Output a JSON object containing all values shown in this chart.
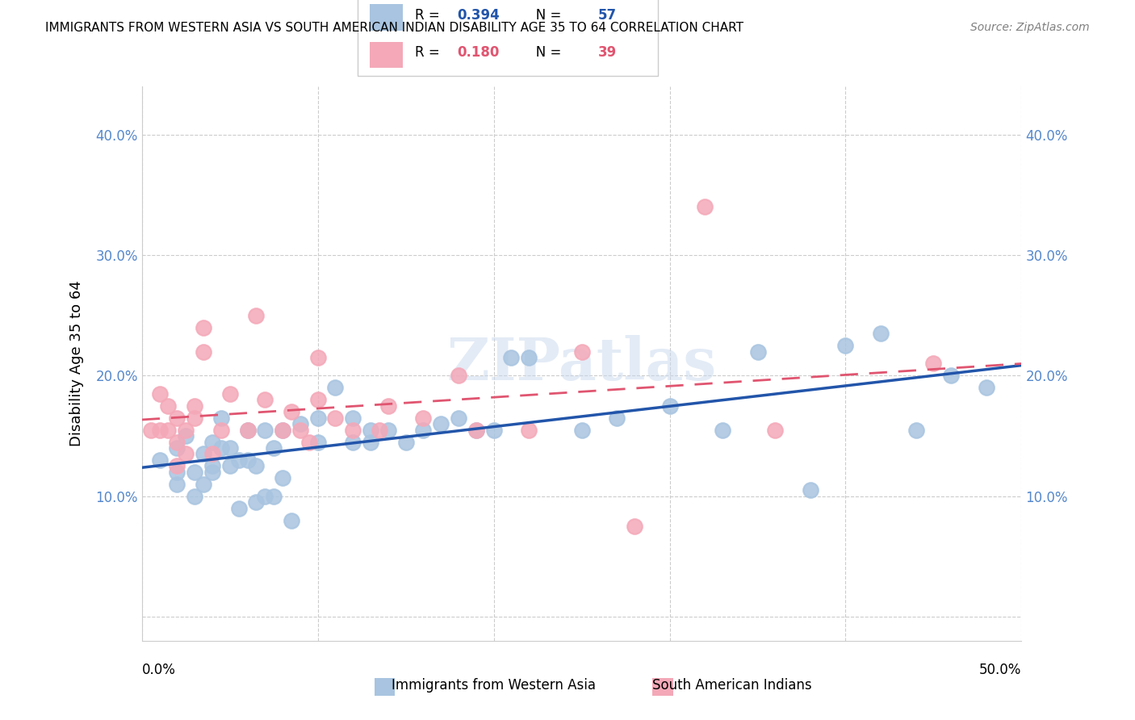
{
  "title": "IMMIGRANTS FROM WESTERN ASIA VS SOUTH AMERICAN INDIAN DISABILITY AGE 35 TO 64 CORRELATION CHART",
  "source": "Source: ZipAtlas.com",
  "ylabel": "Disability Age 35 to 64",
  "xlim": [
    0.0,
    0.5
  ],
  "ylim": [
    -0.02,
    0.44
  ],
  "yticks": [
    0.0,
    0.1,
    0.2,
    0.3,
    0.4
  ],
  "ytick_labels": [
    "",
    "10.0%",
    "20.0%",
    "30.0%",
    "40.0%"
  ],
  "blue_R": 0.394,
  "blue_N": 57,
  "pink_R": 0.18,
  "pink_N": 39,
  "blue_color": "#a8c4e0",
  "pink_color": "#f4a8b8",
  "blue_line_color": "#2255aa",
  "pink_line_color": "#e05570",
  "legend_label_blue": "Immigrants from Western Asia",
  "legend_label_pink": "South American Indians",
  "watermark": "ZIPatlas",
  "blue_scatter_x": [
    0.01,
    0.02,
    0.02,
    0.02,
    0.025,
    0.03,
    0.03,
    0.035,
    0.035,
    0.04,
    0.04,
    0.04,
    0.045,
    0.045,
    0.05,
    0.05,
    0.055,
    0.055,
    0.06,
    0.06,
    0.065,
    0.065,
    0.07,
    0.07,
    0.075,
    0.075,
    0.08,
    0.08,
    0.085,
    0.09,
    0.1,
    0.1,
    0.11,
    0.12,
    0.12,
    0.13,
    0.13,
    0.14,
    0.15,
    0.16,
    0.17,
    0.18,
    0.19,
    0.2,
    0.21,
    0.22,
    0.25,
    0.27,
    0.3,
    0.33,
    0.35,
    0.38,
    0.4,
    0.42,
    0.44,
    0.46,
    0.48
  ],
  "blue_scatter_y": [
    0.13,
    0.11,
    0.12,
    0.14,
    0.15,
    0.1,
    0.12,
    0.11,
    0.135,
    0.12,
    0.125,
    0.145,
    0.14,
    0.165,
    0.125,
    0.14,
    0.09,
    0.13,
    0.13,
    0.155,
    0.095,
    0.125,
    0.1,
    0.155,
    0.1,
    0.14,
    0.115,
    0.155,
    0.08,
    0.16,
    0.145,
    0.165,
    0.19,
    0.145,
    0.165,
    0.145,
    0.155,
    0.155,
    0.145,
    0.155,
    0.16,
    0.165,
    0.155,
    0.155,
    0.215,
    0.215,
    0.155,
    0.165,
    0.175,
    0.155,
    0.22,
    0.105,
    0.225,
    0.235,
    0.155,
    0.2,
    0.19
  ],
  "pink_scatter_x": [
    0.005,
    0.01,
    0.01,
    0.015,
    0.015,
    0.02,
    0.02,
    0.02,
    0.025,
    0.025,
    0.03,
    0.03,
    0.035,
    0.035,
    0.04,
    0.045,
    0.05,
    0.06,
    0.065,
    0.07,
    0.08,
    0.085,
    0.09,
    0.095,
    0.1,
    0.1,
    0.11,
    0.12,
    0.135,
    0.14,
    0.16,
    0.18,
    0.19,
    0.22,
    0.25,
    0.28,
    0.32,
    0.36,
    0.45
  ],
  "pink_scatter_y": [
    0.155,
    0.155,
    0.185,
    0.155,
    0.175,
    0.125,
    0.145,
    0.165,
    0.135,
    0.155,
    0.165,
    0.175,
    0.22,
    0.24,
    0.135,
    0.155,
    0.185,
    0.155,
    0.25,
    0.18,
    0.155,
    0.17,
    0.155,
    0.145,
    0.18,
    0.215,
    0.165,
    0.155,
    0.155,
    0.175,
    0.165,
    0.2,
    0.155,
    0.155,
    0.22,
    0.075,
    0.34,
    0.155,
    0.21
  ]
}
